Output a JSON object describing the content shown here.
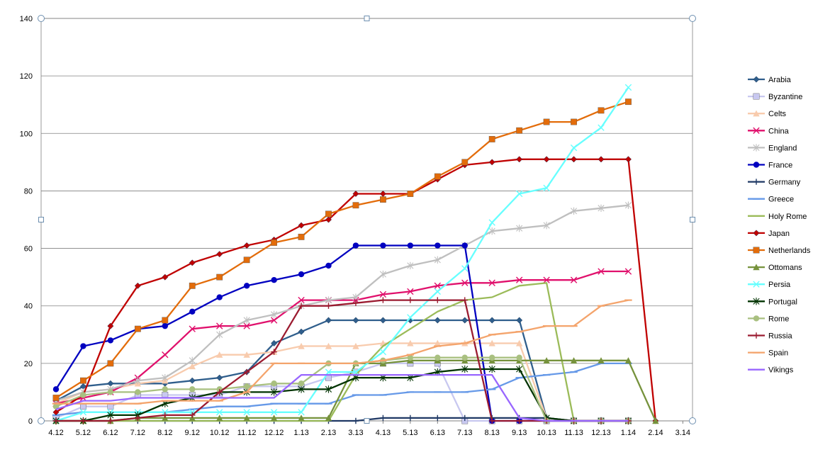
{
  "chart_data": {
    "type": "line",
    "title": "",
    "xlabel": "",
    "ylabel": "",
    "ylim": [
      0,
      140
    ],
    "yticks": [
      0,
      20,
      40,
      60,
      80,
      100,
      120,
      140
    ],
    "grid": "horizontal",
    "legend": "right",
    "categories": [
      "4.12",
      "5.12",
      "6.12",
      "7.12",
      "8.12",
      "9.12",
      "10.12",
      "11.12",
      "12.12",
      "1.13",
      "2.13",
      "3.13",
      "4.13",
      "5.13",
      "6.13",
      "7.13",
      "8.13",
      "9.13",
      "10.13",
      "11.13",
      "12.13",
      "1.14",
      "2.14",
      "3.14"
    ],
    "series": [
      {
        "name": "Arabia",
        "color": "#2F5E8C",
        "marker": "diamond",
        "values": [
          7,
          12,
          13,
          13,
          13,
          14,
          15,
          17,
          27,
          31,
          35,
          35,
          35,
          35,
          35,
          35,
          35,
          35,
          1,
          0,
          0,
          0,
          null,
          null
        ]
      },
      {
        "name": "Byzantine",
        "color": "#C8C8F0",
        "marker": "square",
        "values": [
          1,
          5,
          5,
          9,
          9,
          9,
          9,
          12,
          12,
          12,
          15,
          17,
          20,
          20,
          20,
          0,
          0,
          0,
          0,
          0,
          0,
          0,
          null,
          null
        ]
      },
      {
        "name": "Celts",
        "color": "#F8CBAD",
        "marker": "triangle",
        "values": [
          6,
          10,
          11,
          13,
          14,
          19,
          23,
          23,
          24,
          26,
          26,
          26,
          27,
          27,
          27,
          27,
          27,
          27,
          1,
          0,
          0,
          0,
          null,
          null
        ]
      },
      {
        "name": "China",
        "color": "#E0106C",
        "marker": "x",
        "values": [
          6,
          8,
          10,
          15,
          23,
          32,
          33,
          33,
          35,
          42,
          42,
          42,
          44,
          45,
          47,
          48,
          48,
          49,
          49,
          49,
          52,
          52,
          null,
          null
        ]
      },
      {
        "name": "England",
        "color": "#BFBFBF",
        "marker": "asterisk",
        "values": [
          7,
          10,
          11,
          14,
          15,
          21,
          30,
          35,
          37,
          40,
          42,
          43,
          51,
          54,
          56,
          61,
          66,
          67,
          68,
          73,
          74,
          75,
          null,
          null
        ]
      },
      {
        "name": "France",
        "color": "#0000C0",
        "marker": "circle",
        "values": [
          11,
          26,
          28,
          32,
          33,
          38,
          43,
          47,
          49,
          51,
          54,
          61,
          61,
          61,
          61,
          61,
          0,
          0,
          0,
          0,
          0,
          0,
          null,
          null
        ]
      },
      {
        "name": "Germany",
        "color": "#1F3864",
        "marker": "plus",
        "values": [
          0,
          0,
          0,
          0,
          0,
          0,
          0,
          0,
          0,
          0,
          0,
          0,
          1,
          1,
          1,
          1,
          1,
          1,
          1,
          0,
          0,
          0,
          null,
          null
        ]
      },
      {
        "name": "Greece",
        "color": "#6699E8",
        "marker": "dash",
        "values": [
          2,
          3,
          3,
          3,
          3,
          4,
          5,
          5,
          6,
          6,
          6,
          9,
          9,
          10,
          10,
          10,
          11,
          15,
          16,
          17,
          20,
          20,
          null,
          null
        ]
      },
      {
        "name": "Holy Rome",
        "color": "#9BBB59",
        "marker": "none",
        "values": [
          0,
          0,
          0,
          0,
          0,
          0,
          0,
          0,
          0,
          0,
          0,
          16,
          26,
          32,
          38,
          42,
          43,
          47,
          48,
          0,
          0,
          0,
          null,
          null
        ]
      },
      {
        "name": "Japan",
        "color": "#C00000",
        "marker": "diamond",
        "values": [
          3,
          9,
          33,
          47,
          50,
          55,
          58,
          61,
          63,
          68,
          70,
          79,
          79,
          79,
          84,
          89,
          90,
          91,
          91,
          91,
          91,
          91,
          0,
          null
        ]
      },
      {
        "name": "Netherlands",
        "color": "#E36C0A",
        "marker": "square",
        "values": [
          8,
          14,
          20,
          32,
          35,
          47,
          50,
          56,
          62,
          64,
          72,
          75,
          77,
          79,
          85,
          90,
          98,
          101,
          104,
          104,
          108,
          111,
          null,
          null
        ]
      },
      {
        "name": "Ottomans",
        "color": "#76923C",
        "marker": "triangle",
        "values": [
          0,
          0,
          0,
          1,
          1,
          1,
          1,
          1,
          1,
          1,
          1,
          20,
          20,
          21,
          21,
          21,
          21,
          21,
          21,
          21,
          21,
          21,
          0,
          null
        ]
      },
      {
        "name": "Persia",
        "color": "#66FFFF",
        "marker": "x",
        "values": [
          0,
          3,
          3,
          3,
          3,
          3,
          3,
          3,
          3,
          3,
          17,
          17,
          24,
          36,
          45,
          53,
          69,
          79,
          81,
          95,
          102,
          116,
          null,
          null
        ]
      },
      {
        "name": "Portugal",
        "color": "#003300",
        "marker": "asterisk",
        "values": [
          0,
          0,
          2,
          2,
          6,
          8,
          10,
          10,
          10,
          11,
          11,
          15,
          15,
          15,
          17,
          18,
          18,
          18,
          1,
          0,
          0,
          0,
          null,
          null
        ]
      },
      {
        "name": "Rome",
        "color": "#A9C080",
        "marker": "circle",
        "values": [
          5,
          9,
          10,
          10,
          11,
          11,
          11,
          12,
          13,
          13,
          20,
          20,
          21,
          22,
          22,
          22,
          22,
          22,
          0,
          0,
          0,
          0,
          null,
          null
        ]
      },
      {
        "name": "Russia",
        "color": "#9B1B30",
        "marker": "plus",
        "values": [
          0,
          0,
          0,
          1,
          2,
          2,
          10,
          17,
          24,
          40,
          40,
          41,
          42,
          42,
          42,
          42,
          0,
          0,
          0,
          0,
          0,
          0,
          null,
          null
        ]
      },
      {
        "name": "Spain",
        "color": "#F4A46C",
        "marker": "dash",
        "values": [
          6,
          6,
          6,
          6,
          7,
          7,
          7,
          10,
          20,
          20,
          20,
          20,
          21,
          23,
          26,
          27,
          30,
          31,
          33,
          33,
          40,
          42,
          null,
          null
        ]
      },
      {
        "name": "Vikings",
        "color": "#9966FF",
        "marker": "none",
        "values": [
          4,
          7,
          7,
          8,
          8,
          8,
          8,
          8,
          8,
          16,
          16,
          16,
          16,
          16,
          16,
          16,
          16,
          1,
          0,
          0,
          0,
          0,
          null,
          null
        ]
      }
    ]
  }
}
